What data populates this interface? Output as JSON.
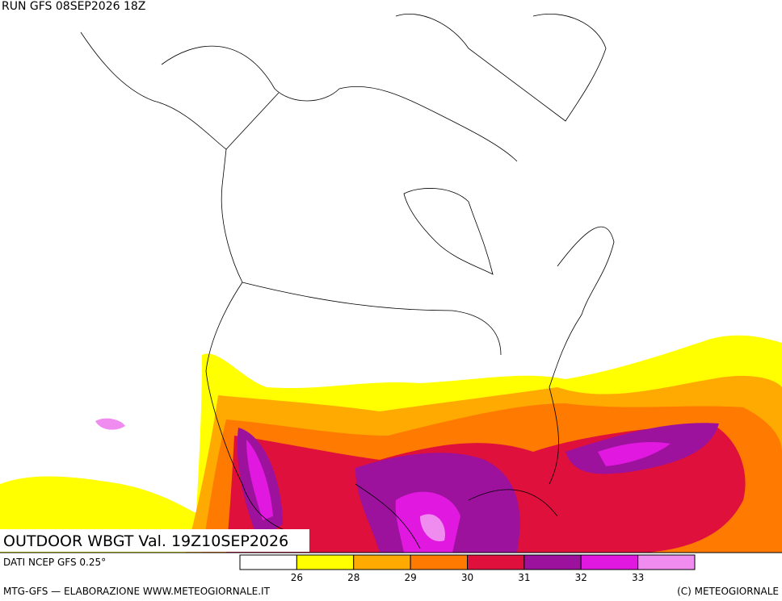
{
  "header": {
    "run": "RUN GFS 08SEP2026 18Z"
  },
  "map": {
    "title": "OUTDOOR WBGT Val. 19Z10SEP2026"
  },
  "footer": {
    "source": "DATI NCEP GFS 0.25°",
    "credit": "MTG-GFS — ELABORAZIONE WWW.METEOGIORNALE.IT",
    "copyright": "(C) METEOGIORNALE"
  },
  "colorbar": {
    "colors": [
      "#ffffff",
      "#ffff00",
      "#ffaa00",
      "#ff7a00",
      "#e0103c",
      "#9c129c",
      "#e018e0",
      "#f08cf0"
    ],
    "ticks": [
      26,
      28,
      29,
      30,
      31,
      32,
      33
    ]
  }
}
